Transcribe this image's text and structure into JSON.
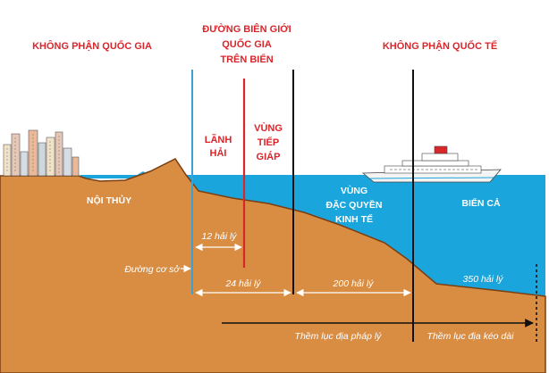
{
  "colors": {
    "sky": "#c8e7f3",
    "sea": "#1aa6dc",
    "land": "#d98d43",
    "land_edge": "#7a3e12",
    "label_red": "#d9262b",
    "baseline_line": "#3aa0d6",
    "border_line": "#d8262b",
    "zone_line": "#111111"
  },
  "headings": {
    "national_airspace": "KHÔNG PHẬN QUỐC GIA",
    "border_line_1": "ĐƯỜNG BIÊN GIỚI",
    "border_line_2": "QUỐC GIA",
    "border_line_3": "TRÊN BIỂN",
    "international_airspace": "KHÔNG PHẬN QUỐC TẾ"
  },
  "zones": {
    "internal_waters": "NỘI THỦY",
    "territorial_sea_1": "LÃNH",
    "territorial_sea_2": "HẢI",
    "contiguous_1": "VÙNG",
    "contiguous_2": "TIẾP",
    "contiguous_3": "GIÁP",
    "eez_1": "VÙNG",
    "eez_2": "ĐẶC QUYỀN",
    "eez_3": "KINH TẾ",
    "high_seas": "BIỂN CẢ"
  },
  "measures": {
    "nm_12": "12 hải lý",
    "nm_24": "24 hải lý",
    "nm_200": "200 hải lý",
    "nm_350": "350 hải lý"
  },
  "labels": {
    "baseline": "Đường cơ sở",
    "legal_shelf": "Thềm lục địa pháp lý",
    "extended_shelf": "Thềm lục địa kéo dài"
  },
  "icons": [
    "city-skyline-icon",
    "ship-icon"
  ]
}
